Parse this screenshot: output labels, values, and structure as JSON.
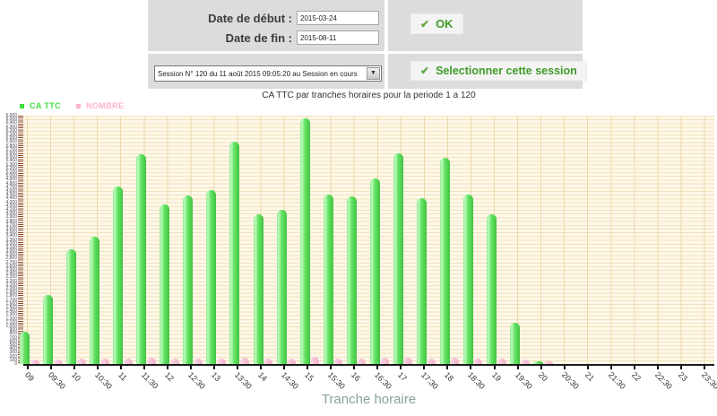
{
  "filters": {
    "date_debut_label": "Date de début :",
    "date_debut_value": "2015-03-24",
    "date_fin_label": "Date de fin :",
    "date_fin_value": "2015-08-11",
    "check_glyph": "✔",
    "ok_button_label": "OK",
    "session_select_value": "Session N° 120 du 11 août 2015 09:05:20 au Session en cours",
    "select_arrow_glyph": "▼",
    "select_session_button_label": "Selectionner cette session"
  },
  "colors": {
    "accent_green": "#3f9b28",
    "bar_green": "#55dd55",
    "bar_pink": "#f4bed4",
    "legend_green_text": "#3ddc3d",
    "legend_pink_text": "#ffb3cc",
    "panel_gray": "#dcdcdc",
    "plot_background": "#fdf8e9"
  },
  "chart": {
    "title": "CA TTC par tranches horaires pour la periode 1 a 120",
    "legend": {
      "ca_ttc": "CA TTC",
      "nombre": "NOMBRE"
    },
    "xlabel": "Tranche horaire"
  },
  "chart_data": {
    "type": "bar",
    "title": "CA TTC par tranches horaires pour la periode 1 a 120",
    "xlabel": "Tranche horaire",
    "ylabel": "",
    "categories": [
      "09",
      "09:30",
      "10",
      "10:30",
      "11",
      "11:30",
      "12",
      "12:30",
      "13",
      "13:30",
      "14",
      "14:30",
      "15",
      "15:30",
      "16",
      "16:30",
      "17",
      "17:30",
      "18",
      "18:30",
      "19",
      "19:30",
      "20",
      "20:30",
      "21",
      "21:30",
      "22",
      "22:30",
      "23",
      "23:30"
    ],
    "series": [
      {
        "name": "CA TTC",
        "color": "#55dd55",
        "values": [
          850,
          1830,
          3060,
          3390,
          4720,
          5580,
          4250,
          4490,
          4630,
          5910,
          3990,
          4110,
          6530,
          4510,
          4460,
          4940,
          5600,
          4420,
          5480,
          4510,
          3990,
          1090,
          70,
          0,
          0,
          0,
          0,
          0,
          0,
          0
        ]
      },
      {
        "name": "NOMBRE",
        "color": "#f4bed4",
        "values": [
          120,
          130,
          140,
          140,
          150,
          160,
          150,
          150,
          150,
          170,
          140,
          150,
          180,
          150,
          150,
          160,
          170,
          150,
          160,
          150,
          140,
          120,
          60,
          0,
          0,
          0,
          0,
          0,
          0,
          0
        ]
      }
    ],
    "ylim": [
      0,
      6600
    ],
    "y_label_step": 100,
    "y_grid_step": 100,
    "grid": true,
    "legend_position": "top-left"
  }
}
